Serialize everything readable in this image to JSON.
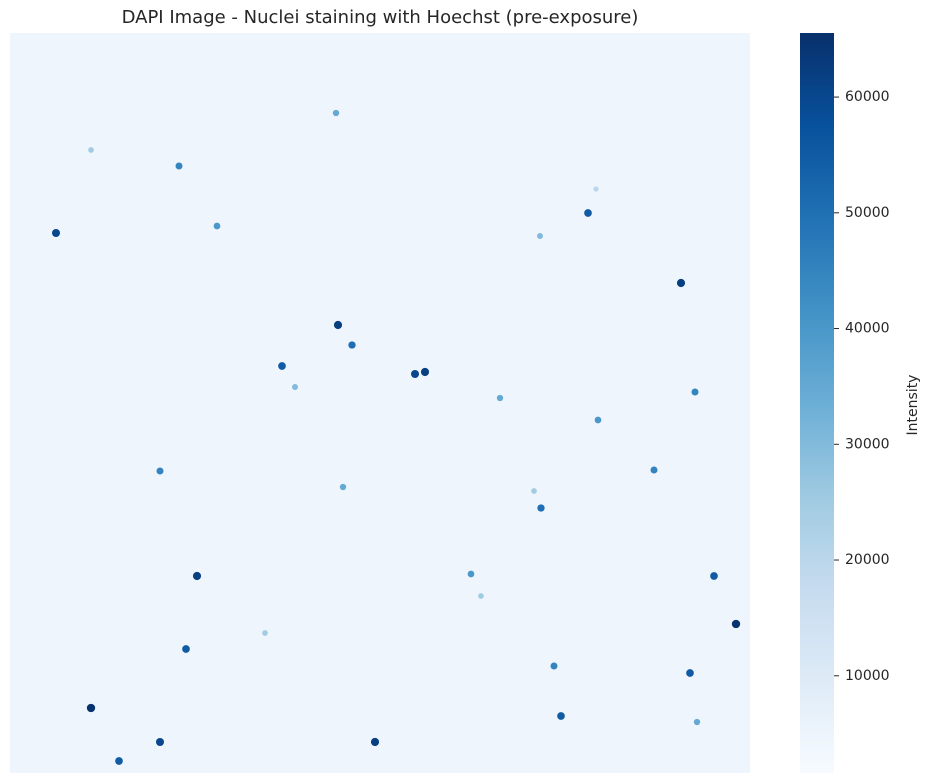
{
  "chart_data": {
    "type": "image",
    "title": "DAPI Image - Nuclei staining with Hoechst (pre-exposure)",
    "colorbar_label": "Intensity",
    "colormap": [
      "#f7fbff",
      "#deebf7",
      "#c6dbef",
      "#9ecae1",
      "#6baed6",
      "#4292c6",
      "#2171b5",
      "#08519c",
      "#08306b"
    ],
    "clim": [
      1600,
      65535
    ],
    "cticks": [
      10000,
      20000,
      30000,
      40000,
      50000,
      60000
    ],
    "background_value": 4500,
    "xlim": [
      0,
      740
    ],
    "ylim": [
      0,
      740
    ],
    "x": [
      46,
      81,
      169,
      207,
      326,
      328,
      342,
      272,
      285,
      405,
      415,
      530,
      586,
      578,
      671,
      685,
      588,
      644,
      490,
      333,
      524,
      531,
      187,
      176,
      81,
      150,
      109,
      365,
      461,
      471,
      704,
      726,
      680,
      687,
      544,
      551,
      255,
      150
    ],
    "y": [
      200,
      117,
      133,
      193,
      80,
      292,
      312,
      333,
      354,
      341,
      339,
      203,
      156,
      180,
      250,
      359,
      387,
      437,
      365,
      454,
      458,
      475,
      543,
      616,
      675,
      709,
      728,
      709,
      541,
      563,
      543,
      591,
      640,
      689,
      633,
      683,
      600,
      438
    ],
    "values": [
      60000,
      25000,
      45000,
      40000,
      35000,
      62000,
      50000,
      55000,
      30000,
      60000,
      62000,
      30000,
      20000,
      55000,
      62000,
      45000,
      40000,
      45000,
      35000,
      35000,
      25000,
      50000,
      62000,
      55000,
      65000,
      60000,
      55000,
      62000,
      40000,
      25000,
      55000,
      65000,
      55000,
      35000,
      45000,
      55000,
      25000,
      45000
    ]
  }
}
